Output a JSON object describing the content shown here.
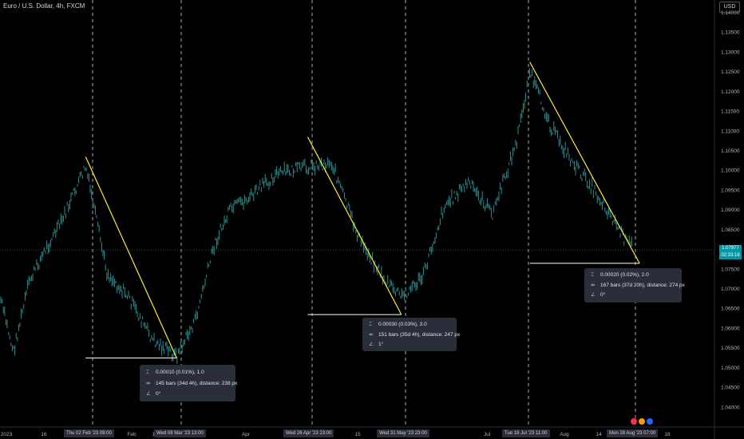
{
  "header": {
    "title": "Euro / U.S. Dollar, 4h, FXCM",
    "currency": "USD"
  },
  "price_badge": {
    "price": "1.07977",
    "countdown": "02:33:16"
  },
  "colors": {
    "candle": "#26a69a",
    "measure_line": "#ffeb3b",
    "base_line": "#ffffff",
    "badge": "#0097a7"
  },
  "measures": [
    {
      "l1": "0.00010 (0.01%), 1.0",
      "l2": "145 bars (34d 4h), distance: 238 px",
      "l3": "0°"
    },
    {
      "l1": "0.00030 (0.03%), 3.0",
      "l2": "151 bars (35d 4h), distance: 247 px",
      "l3": "1°"
    },
    {
      "l1": "0.00020 (0.02%), 2.0",
      "l2": "167 bars (37d 20h), distance: 274 px",
      "l3": "0°"
    }
  ],
  "icons": {
    "price_range": "price-range-icon",
    "bar_range": "bar-range-icon",
    "angle": "angle-icon"
  },
  "date_labels": [
    "Thu 02 Feb '23  09:00",
    "Wed 08 Mar '23  13:00",
    "Wed 26 Apr '23  23:00",
    "Wed 31 May '23  23:00",
    "Tue 18 Jul '23  11:00",
    "Mon 28 Aug '23  07:00"
  ],
  "chart_data": {
    "type": "line",
    "title": "Euro / U.S. Dollar, 4h, FXCM",
    "ylim": [
      1.035,
      1.14
    ],
    "y_ticks": [
      "1.14000",
      "1.13500",
      "1.13000",
      "1.12500",
      "1.12000",
      "1.11500",
      "1.11000",
      "1.10500",
      "1.10000",
      "1.09500",
      "1.09000",
      "1.08500",
      "1.08000",
      "1.07500",
      "1.07000",
      "1.06500",
      "1.06000",
      "1.05500",
      "1.05000",
      "1.04500",
      "1.04000"
    ],
    "x_ticks": [
      "2023",
      "16",
      "Feb",
      "13",
      "Mar",
      "Apr",
      "May",
      "15",
      "Jun",
      "Jul",
      "Aug",
      "14",
      "18"
    ],
    "series": [
      {
        "x": [
          "2023-01-01",
          "2023-01-06",
          "2023-01-12",
          "2023-01-18",
          "2023-01-24",
          "2023-02-02",
          "2023-02-10",
          "2023-02-18",
          "2023-02-27",
          "2023-03-08",
          "2023-03-15",
          "2023-03-22",
          "2023-03-28",
          "2023-04-04",
          "2023-04-14",
          "2023-04-26",
          "2023-05-05",
          "2023-05-15",
          "2023-05-25",
          "2023-05-31",
          "2023-06-08",
          "2023-06-16",
          "2023-06-25",
          "2023-07-04",
          "2023-07-13",
          "2023-07-18",
          "2023-07-26",
          "2023-08-03",
          "2023-08-10",
          "2023-08-16",
          "2023-08-23",
          "2023-08-28"
        ],
        "values": [
          1.068,
          1.054,
          1.072,
          1.08,
          1.087,
          1.101,
          1.074,
          1.068,
          1.057,
          1.053,
          1.062,
          1.081,
          1.09,
          1.093,
          1.099,
          1.101,
          1.102,
          1.083,
          1.072,
          1.068,
          1.073,
          1.091,
          1.097,
          1.089,
          1.107,
          1.125,
          1.111,
          1.102,
          1.096,
          1.09,
          1.082,
          1.08
        ]
      }
    ],
    "measure_lines": [
      {
        "from": [
          "2023-02-02",
          1.1035
        ],
        "to": [
          "2023-03-08",
          1.0525
        ]
      },
      {
        "from": [
          "2023-04-26",
          1.1085
        ],
        "to": [
          "2023-05-31",
          1.0635
        ]
      },
      {
        "from": [
          "2023-07-18",
          1.1275
        ],
        "to": [
          "2023-08-28",
          1.0765
        ]
      }
    ],
    "grid": false
  }
}
